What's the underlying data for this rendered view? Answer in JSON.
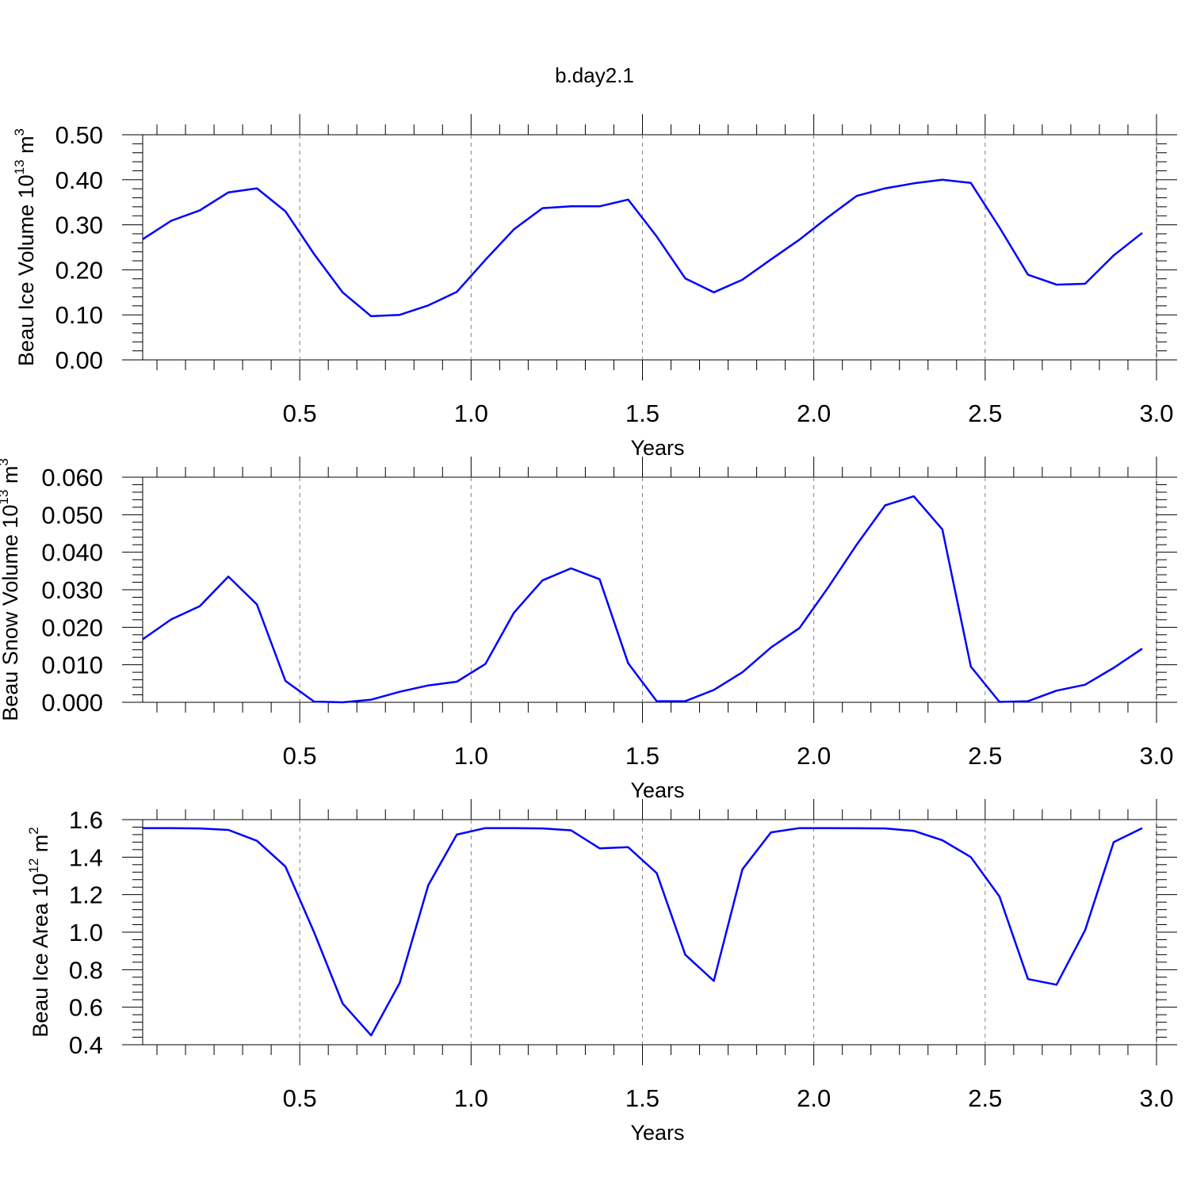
{
  "title": "b.day2.1",
  "colors": {
    "series": "#0000ff",
    "axis": "#000000",
    "grid": "#808080"
  },
  "chart_data": [
    {
      "type": "line",
      "ylabel": {
        "text": "Beau Ice Volume 10",
        "sup": "13",
        "unit": " m",
        "unit_sup": "3"
      },
      "xlabel": "Years",
      "xlim": [
        0.0417,
        3.0
      ],
      "ylim": [
        0.0,
        0.5
      ],
      "yticks": [
        "0.00",
        "0.10",
        "0.20",
        "0.30",
        "0.40",
        "0.50"
      ],
      "xticks": [
        "0.5",
        "1.0",
        "1.5",
        "2.0",
        "2.5",
        "3.0"
      ],
      "grid": "vertical dashed at x ticks",
      "x": [
        0.0417,
        0.125,
        0.2083,
        0.2917,
        0.375,
        0.4583,
        0.5417,
        0.625,
        0.7083,
        0.7917,
        0.875,
        0.9583,
        1.0417,
        1.125,
        1.2083,
        1.2917,
        1.375,
        1.4583,
        1.5417,
        1.625,
        1.7083,
        1.7917,
        1.875,
        1.9583,
        2.0417,
        2.125,
        2.2083,
        2.2917,
        2.375,
        2.4583,
        2.5417,
        2.625,
        2.7083,
        2.7917,
        2.875,
        2.9583
      ],
      "series": [
        {
          "values": [
            0.268,
            0.309,
            0.332,
            0.372,
            0.381,
            0.33,
            0.235,
            0.15,
            0.097,
            0.1,
            0.121,
            0.151,
            0.222,
            0.29,
            0.337,
            0.341,
            0.341,
            0.356,
            0.274,
            0.181,
            0.15,
            0.178,
            0.223,
            0.267,
            0.317,
            0.364,
            0.381,
            0.392,
            0.4,
            0.393,
            0.294,
            0.189,
            0.167,
            0.169,
            0.232,
            0.282
          ]
        }
      ]
    },
    {
      "type": "line",
      "ylabel": {
        "text": "Beau Snow Volume 10",
        "sup": "13",
        "unit": " m",
        "unit_sup": "3"
      },
      "xlabel": "Years",
      "xlim": [
        0.0417,
        3.0
      ],
      "ylim": [
        0.0,
        0.06
      ],
      "yticks": [
        "0.000",
        "0.010",
        "0.020",
        "0.030",
        "0.040",
        "0.050",
        "0.060"
      ],
      "xticks": [
        "0.5",
        "1.0",
        "1.5",
        "2.0",
        "2.5",
        "3.0"
      ],
      "grid": "vertical dashed at x ticks",
      "x": [
        0.0417,
        0.125,
        0.2083,
        0.2917,
        0.375,
        0.4583,
        0.5417,
        0.625,
        0.7083,
        0.7917,
        0.875,
        0.9583,
        1.0417,
        1.125,
        1.2083,
        1.2917,
        1.375,
        1.4583,
        1.5417,
        1.625,
        1.7083,
        1.7917,
        1.875,
        1.9583,
        2.0417,
        2.125,
        2.2083,
        2.2917,
        2.375,
        2.4583,
        2.5417,
        2.625,
        2.7083,
        2.7917,
        2.875,
        2.9583
      ],
      "series": [
        {
          "values": [
            0.0168,
            0.0221,
            0.0256,
            0.0335,
            0.0261,
            0.0057,
            0.0002,
            0.0,
            0.0007,
            0.0028,
            0.0045,
            0.0055,
            0.0102,
            0.0239,
            0.0325,
            0.0357,
            0.0328,
            0.0104,
            0.0003,
            0.0003,
            0.0033,
            0.008,
            0.0146,
            0.0198,
            0.0306,
            0.042,
            0.0525,
            0.0549,
            0.0461,
            0.0095,
            0.0001,
            0.0003,
            0.0031,
            0.0047,
            0.0092,
            0.0143
          ]
        }
      ]
    },
    {
      "type": "line",
      "ylabel": {
        "text": "Beau Ice Area 10",
        "sup": "12",
        "unit": " m",
        "unit_sup": "2"
      },
      "xlabel": "Years",
      "xlim": [
        0.0417,
        3.0
      ],
      "ylim": [
        0.4,
        1.6
      ],
      "yticks": [
        "0.4",
        "0.6",
        "0.8",
        "1.0",
        "1.2",
        "1.4",
        "1.6"
      ],
      "xticks": [
        "0.5",
        "1.0",
        "1.5",
        "2.0",
        "2.5",
        "3.0"
      ],
      "grid": "vertical dashed at x ticks",
      "x": [
        0.0417,
        0.125,
        0.2083,
        0.2917,
        0.375,
        0.4583,
        0.5417,
        0.625,
        0.7083,
        0.7917,
        0.875,
        0.9583,
        1.0417,
        1.125,
        1.2083,
        1.2917,
        1.375,
        1.4583,
        1.5417,
        1.625,
        1.7083,
        1.7917,
        1.875,
        1.9583,
        2.0417,
        2.125,
        2.2083,
        2.2917,
        2.375,
        2.4583,
        2.5417,
        2.625,
        2.7083,
        2.7917,
        2.875,
        2.9583
      ],
      "series": [
        {
          "values": [
            1.555,
            1.555,
            1.553,
            1.545,
            1.487,
            1.35,
            1.0,
            0.62,
            0.45,
            0.73,
            1.25,
            1.52,
            1.555,
            1.555,
            1.553,
            1.543,
            1.447,
            1.453,
            1.315,
            0.88,
            0.74,
            1.335,
            1.532,
            1.555,
            1.555,
            1.554,
            1.553,
            1.54,
            1.49,
            1.4,
            1.19,
            0.75,
            0.72,
            1.01,
            1.48,
            1.555
          ]
        }
      ]
    }
  ]
}
